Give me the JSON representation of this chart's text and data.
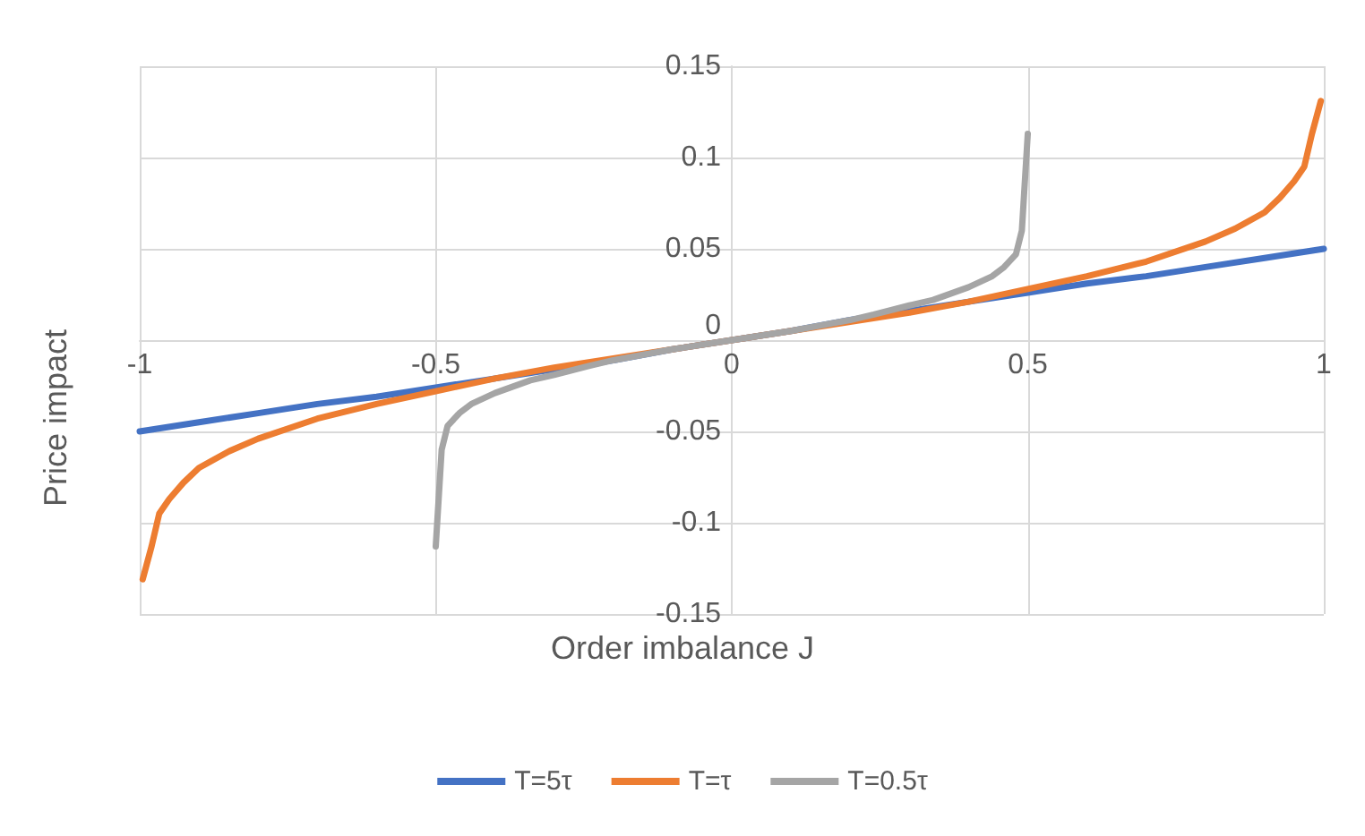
{
  "chart_data": {
    "type": "line",
    "xlabel": "Order imbalance J",
    "ylabel": "Price impact",
    "xlim": [
      -1,
      1
    ],
    "xticks": [
      -1,
      -0.5,
      0,
      0.5,
      1
    ],
    "ylim": [
      -0.15,
      0.15
    ],
    "yticks": [
      -0.15,
      -0.1,
      -0.05,
      0,
      0.05,
      0.1,
      0.15
    ],
    "grid": true,
    "legend": "bottom",
    "marker": "none",
    "line_style": "solid",
    "series": [
      {
        "name": "T=5τ",
        "color": "#4472c4",
        "x": [
          -1,
          -0.9,
          -0.8,
          -0.7,
          -0.6,
          -0.5,
          -0.4,
          -0.3,
          -0.2,
          -0.1,
          0,
          0.1,
          0.2,
          0.3,
          0.4,
          0.5,
          0.6,
          0.7,
          0.8,
          0.9,
          1
        ],
        "values": [
          -0.05,
          -0.045,
          -0.04,
          -0.035,
          -0.031,
          -0.026,
          -0.021,
          -0.016,
          -0.011,
          -0.005,
          0,
          0.005,
          0.011,
          0.016,
          0.021,
          0.026,
          0.031,
          0.035,
          0.04,
          0.045,
          0.05
        ]
      },
      {
        "name": "T=τ",
        "color": "#ed7d31",
        "x": [
          -0.995,
          -0.98,
          -0.967,
          -0.95,
          -0.926,
          -0.9,
          -0.85,
          -0.8,
          -0.7,
          -0.6,
          -0.5,
          -0.4,
          -0.3,
          -0.2,
          -0.1,
          0,
          0.1,
          0.2,
          0.3,
          0.4,
          0.5,
          0.6,
          0.7,
          0.8,
          0.85,
          0.9,
          0.926,
          0.95,
          0.967,
          0.98,
          0.995
        ],
        "values": [
          -0.131,
          -0.113,
          -0.095,
          -0.087,
          -0.078,
          -0.07,
          -0.061,
          -0.054,
          -0.043,
          -0.035,
          -0.028,
          -0.021,
          -0.015,
          -0.01,
          -0.005,
          0,
          0.005,
          0.01,
          0.015,
          0.021,
          0.028,
          0.035,
          0.043,
          0.054,
          0.061,
          0.07,
          0.078,
          0.087,
          0.095,
          0.113,
          0.131
        ]
      },
      {
        "name": "T=0.5τ",
        "color": "#a5a5a5",
        "x": [
          -0.5,
          -0.49,
          -0.48,
          -0.46,
          -0.44,
          -0.4,
          -0.34,
          -0.3,
          -0.24,
          -0.2,
          -0.1,
          0,
          0.1,
          0.2,
          0.24,
          0.3,
          0.34,
          0.4,
          0.44,
          0.46,
          0.48,
          0.49,
          0.5
        ],
        "values": [
          -0.113,
          -0.06,
          -0.047,
          -0.04,
          -0.035,
          -0.029,
          -0.022,
          -0.019,
          -0.014,
          -0.011,
          -0.005,
          0,
          0.005,
          0.011,
          0.014,
          0.019,
          0.022,
          0.029,
          0.035,
          0.04,
          0.047,
          0.06,
          0.113
        ]
      }
    ]
  }
}
